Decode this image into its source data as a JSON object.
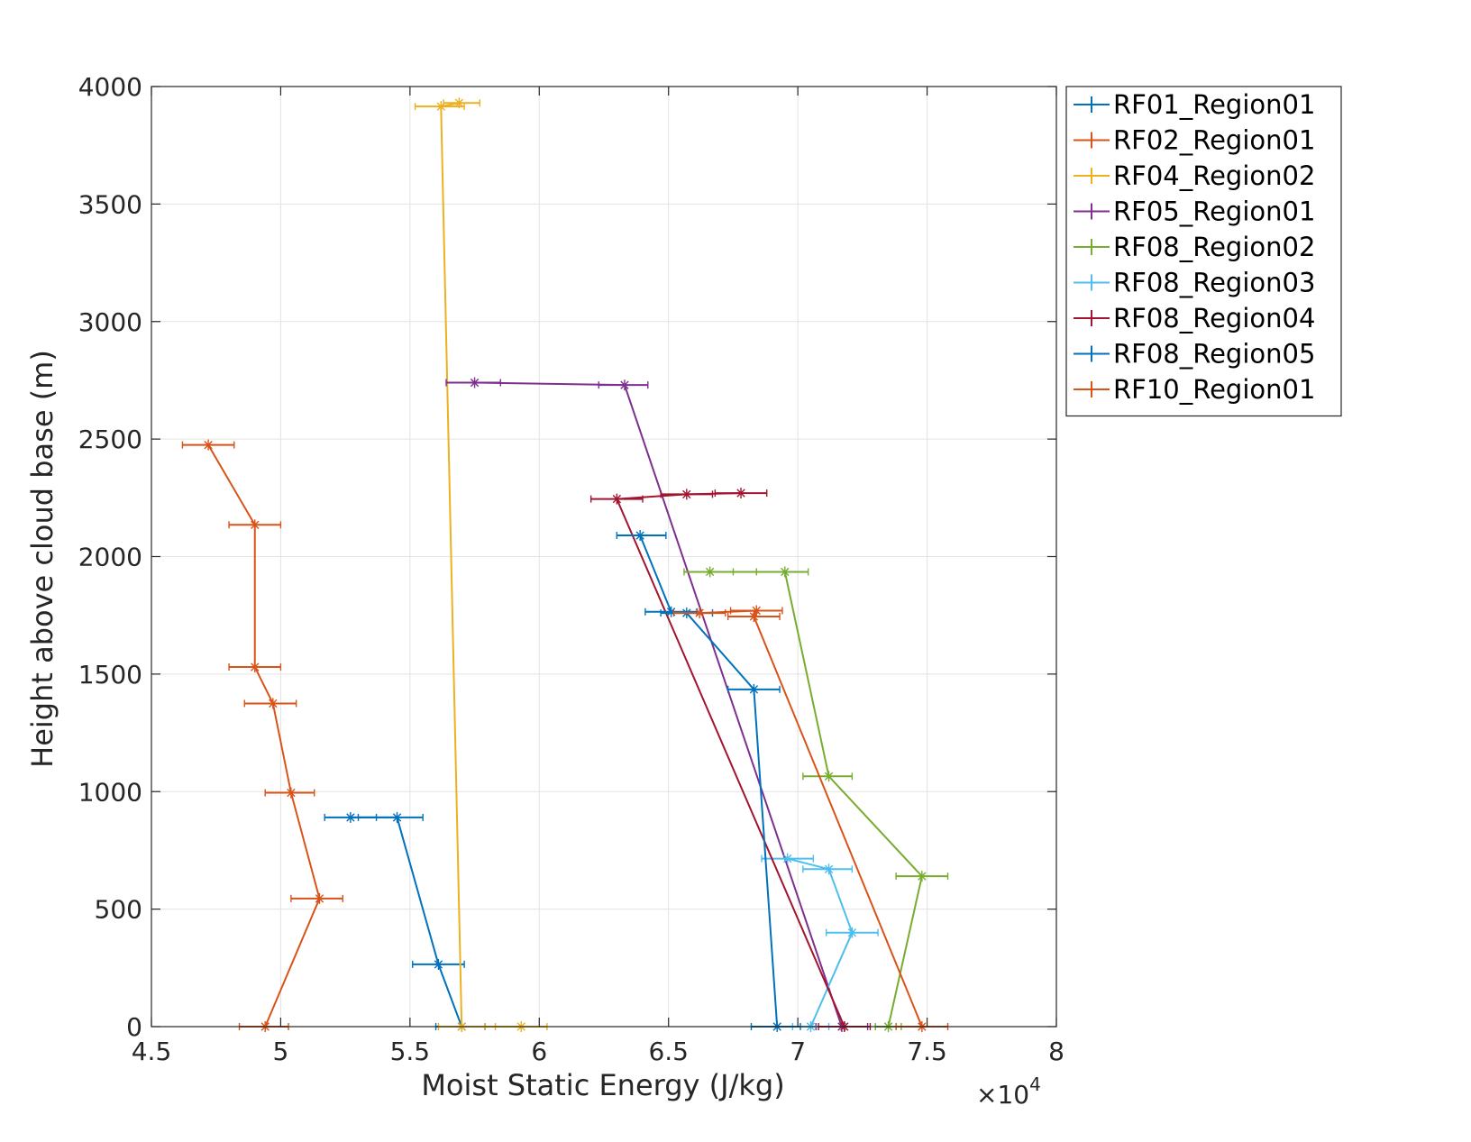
{
  "chart_data": {
    "type": "line",
    "xlabel": "Moist Static Energy (J/kg)",
    "ylabel": "Height above cloud base (m)",
    "x_multiplier_base": "×10",
    "x_multiplier_exp": "4",
    "xlim": [
      4.5,
      8
    ],
    "ylim": [
      0,
      4000
    ],
    "xticks": [
      "4.5",
      "5",
      "5.5",
      "6",
      "6.5",
      "7",
      "7.5",
      "8"
    ],
    "yticks": [
      "0",
      "500",
      "1000",
      "1500",
      "2000",
      "2500",
      "3000",
      "3500",
      "4000"
    ],
    "grid": true,
    "legend_position": "outside-right-top",
    "series": [
      {
        "name": "RF01_Region01",
        "color": "#0072BD",
        "points": [
          {
            "x": 5.7,
            "y": 0,
            "xlo": 5.6,
            "xhi": 5.79
          },
          {
            "x": 5.61,
            "y": 265,
            "xlo": 5.51,
            "xhi": 5.71
          },
          {
            "x": 5.45,
            "y": 890,
            "xlo": 5.3,
            "xhi": 5.55
          },
          {
            "x": 5.27,
            "y": 890,
            "xlo": 5.17,
            "xhi": 5.37
          }
        ]
      },
      {
        "name": "RF02_Region01",
        "color": "#D95319",
        "points": [
          {
            "x": 4.94,
            "y": 0,
            "xlo": 4.84,
            "xhi": 5.03
          },
          {
            "x": 5.15,
            "y": 545,
            "xlo": 5.04,
            "xhi": 5.24
          },
          {
            "x": 5.04,
            "y": 995,
            "xlo": 4.94,
            "xhi": 5.13
          },
          {
            "x": 4.97,
            "y": 1375,
            "xlo": 4.86,
            "xhi": 5.06
          },
          {
            "x": 4.9,
            "y": 1530,
            "xlo": 4.8,
            "xhi": 5.0
          },
          {
            "x": 4.9,
            "y": 2135,
            "xlo": 4.8,
            "xhi": 5.0
          },
          {
            "x": 4.72,
            "y": 2475,
            "xlo": 4.62,
            "xhi": 4.82
          }
        ]
      },
      {
        "name": "RF04_Region02",
        "color": "#EDB120",
        "points": [
          {
            "x": 5.93,
            "y": 0,
            "xlo": 5.83,
            "xhi": 6.03
          },
          {
            "x": 5.7,
            "y": 0,
            "xlo": 5.61,
            "xhi": 5.79
          },
          {
            "x": 5.62,
            "y": 3915,
            "xlo": 5.52,
            "xhi": 5.71
          },
          {
            "x": 5.69,
            "y": 3930,
            "xlo": 5.63,
            "xhi": 5.77
          }
        ]
      },
      {
        "name": "RF05_Region01",
        "color": "#7E2F8E",
        "points": [
          {
            "x": 7.17,
            "y": 0,
            "xlo": 7.07,
            "xhi": 7.27
          },
          {
            "x": 6.33,
            "y": 2730,
            "xlo": 6.23,
            "xhi": 6.42
          },
          {
            "x": 5.75,
            "y": 2740,
            "xlo": 5.64,
            "xhi": 5.85
          }
        ]
      },
      {
        "name": "RF08_Region02",
        "color": "#77AC30",
        "points": [
          {
            "x": 7.35,
            "y": 0,
            "xlo": 7.3,
            "xhi": 7.4
          },
          {
            "x": 7.48,
            "y": 640,
            "xlo": 7.38,
            "xhi": 7.58
          },
          {
            "x": 7.12,
            "y": 1065,
            "xlo": 7.02,
            "xhi": 7.21
          },
          {
            "x": 6.95,
            "y": 1935,
            "xlo": 6.84,
            "xhi": 7.04
          },
          {
            "x": 6.66,
            "y": 1935,
            "xlo": 6.56,
            "xhi": 6.75
          }
        ]
      },
      {
        "name": "RF08_Region03",
        "color": "#4DBEEE",
        "points": [
          {
            "x": 7.05,
            "y": 0,
            "xlo": 6.98,
            "xhi": 7.12
          },
          {
            "x": 7.21,
            "y": 400,
            "xlo": 7.11,
            "xhi": 7.31
          },
          {
            "x": 7.12,
            "y": 670,
            "xlo": 7.02,
            "xhi": 7.21
          },
          {
            "x": 6.96,
            "y": 715,
            "xlo": 6.86,
            "xhi": 7.06
          }
        ]
      },
      {
        "name": "RF08_Region04",
        "color": "#A2142F",
        "points": [
          {
            "x": 7.18,
            "y": 0,
            "xlo": 7.08,
            "xhi": 7.28
          },
          {
            "x": 6.3,
            "y": 2245,
            "xlo": 6.2,
            "xhi": 6.4
          },
          {
            "x": 6.57,
            "y": 2265,
            "xlo": 6.47,
            "xhi": 6.67
          },
          {
            "x": 6.78,
            "y": 2270,
            "xlo": 6.68,
            "xhi": 6.88
          }
        ]
      },
      {
        "name": "RF08_Region05",
        "color": "#0072BD",
        "points": [
          {
            "x": 6.92,
            "y": 0,
            "xlo": 6.82,
            "xhi": 7.01
          },
          {
            "x": 6.83,
            "y": 1435,
            "xlo": 6.73,
            "xhi": 6.93
          },
          {
            "x": 6.57,
            "y": 1760,
            "xlo": 6.47,
            "xhi": 6.67
          },
          {
            "x": 6.51,
            "y": 1765,
            "xlo": 6.41,
            "xhi": 6.61
          },
          {
            "x": 6.39,
            "y": 2090,
            "xlo": 6.3,
            "xhi": 6.49
          }
        ]
      },
      {
        "name": "RF10_Region01",
        "color": "#D95319",
        "points": [
          {
            "x": 7.48,
            "y": 0,
            "xlo": 7.38,
            "xhi": 7.58
          },
          {
            "x": 6.83,
            "y": 1745,
            "xlo": 6.73,
            "xhi": 6.93
          },
          {
            "x": 6.84,
            "y": 1770,
            "xlo": 6.74,
            "xhi": 6.94
          },
          {
            "x": 6.62,
            "y": 1760,
            "xlo": 6.52,
            "xhi": 6.72
          }
        ]
      }
    ]
  }
}
